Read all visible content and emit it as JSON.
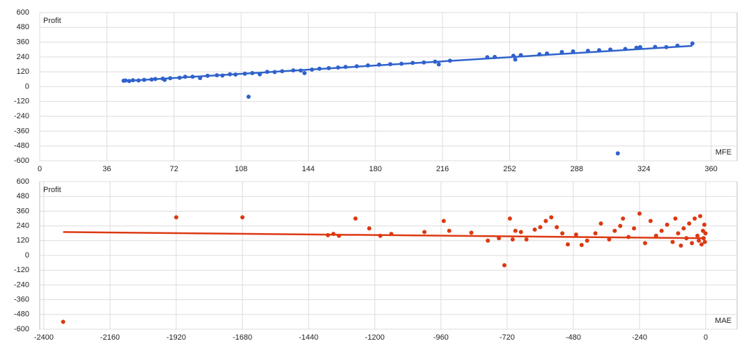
{
  "chart_data": [
    {
      "type": "scatter",
      "ylabel": "Profit",
      "xlabel": "MFE",
      "color": "#2f62cc",
      "grid": true,
      "xlim": [
        0,
        374
      ],
      "ylim": [
        -600,
        600
      ],
      "xticks": [
        0,
        36,
        72,
        108,
        144,
        180,
        216,
        252,
        288,
        324,
        360
      ],
      "yticks": [
        -600,
        -480,
        -360,
        -240,
        -120,
        0,
        120,
        240,
        360,
        480,
        600
      ],
      "x": [
        45,
        46,
        48,
        50,
        53,
        56,
        60,
        62,
        66,
        67,
        70,
        75,
        78,
        82,
        86,
        90,
        95,
        98,
        102,
        105,
        110,
        112,
        114,
        118,
        122,
        126,
        130,
        136,
        140,
        142,
        146,
        150,
        155,
        160,
        164,
        170,
        176,
        182,
        188,
        194,
        200,
        206,
        212,
        214,
        220,
        240,
        244,
        254,
        255,
        258,
        268,
        272,
        280,
        286,
        294,
        300,
        306,
        310,
        314,
        320,
        322,
        330,
        336,
        342,
        350
      ],
      "values": [
        48,
        50,
        46,
        52,
        50,
        55,
        58,
        62,
        65,
        55,
        68,
        72,
        80,
        80,
        70,
        88,
        92,
        90,
        100,
        98,
        105,
        -82,
        110,
        100,
        120,
        118,
        125,
        132,
        130,
        110,
        138,
        145,
        150,
        155,
        160,
        165,
        172,
        178,
        182,
        185,
        192,
        196,
        202,
        180,
        210,
        238,
        240,
        250,
        220,
        255,
        262,
        268,
        280,
        285,
        290,
        295,
        300,
        -540,
        305,
        315,
        320,
        322,
        320,
        332,
        350
      ],
      "trendline": {
        "x": [
          45,
          350
        ],
        "values": [
          45,
          330
        ]
      }
    },
    {
      "type": "scatter",
      "ylabel": "Profit",
      "xlabel": "MAE",
      "color": "#dc3912",
      "grid": true,
      "xlim": [
        -2415,
        114
      ],
      "ylim": [
        -600,
        600
      ],
      "xticks": [
        -2400,
        -2160,
        -1920,
        -1680,
        -1440,
        -1200,
        -960,
        -720,
        -480,
        -240,
        0
      ],
      "yticks": [
        -600,
        -480,
        -360,
        -240,
        -120,
        0,
        120,
        240,
        360,
        480,
        600
      ],
      "x": [
        -2330,
        -1920,
        -1680,
        -1370,
        -1350,
        -1330,
        -1270,
        -1220,
        -1180,
        -1140,
        -1020,
        -950,
        -930,
        -850,
        -790,
        -750,
        -730,
        -710,
        -700,
        -690,
        -670,
        -650,
        -620,
        -600,
        -580,
        -560,
        -540,
        -520,
        -500,
        -470,
        -450,
        -430,
        -400,
        -380,
        -350,
        -330,
        -310,
        -300,
        -280,
        -260,
        -240,
        -220,
        -200,
        -180,
        -160,
        -140,
        -120,
        -110,
        -100,
        -90,
        -80,
        -70,
        -60,
        -50,
        -40,
        -30,
        -25,
        -20,
        -15,
        -10,
        -8,
        -5,
        -3,
        -1
      ],
      "values": [
        -540,
        310,
        310,
        165,
        175,
        160,
        300,
        220,
        160,
        175,
        190,
        280,
        200,
        185,
        120,
        140,
        -80,
        300,
        130,
        200,
        190,
        130,
        210,
        230,
        280,
        310,
        230,
        180,
        90,
        170,
        85,
        120,
        180,
        260,
        130,
        200,
        240,
        300,
        150,
        220,
        340,
        100,
        280,
        160,
        200,
        250,
        110,
        300,
        180,
        80,
        220,
        140,
        260,
        100,
        300,
        160,
        120,
        320,
        90,
        200,
        140,
        250,
        110,
        180
      ],
      "trendline": {
        "x": [
          -2330,
          0
        ],
        "values": [
          190,
          140
        ]
      }
    }
  ]
}
